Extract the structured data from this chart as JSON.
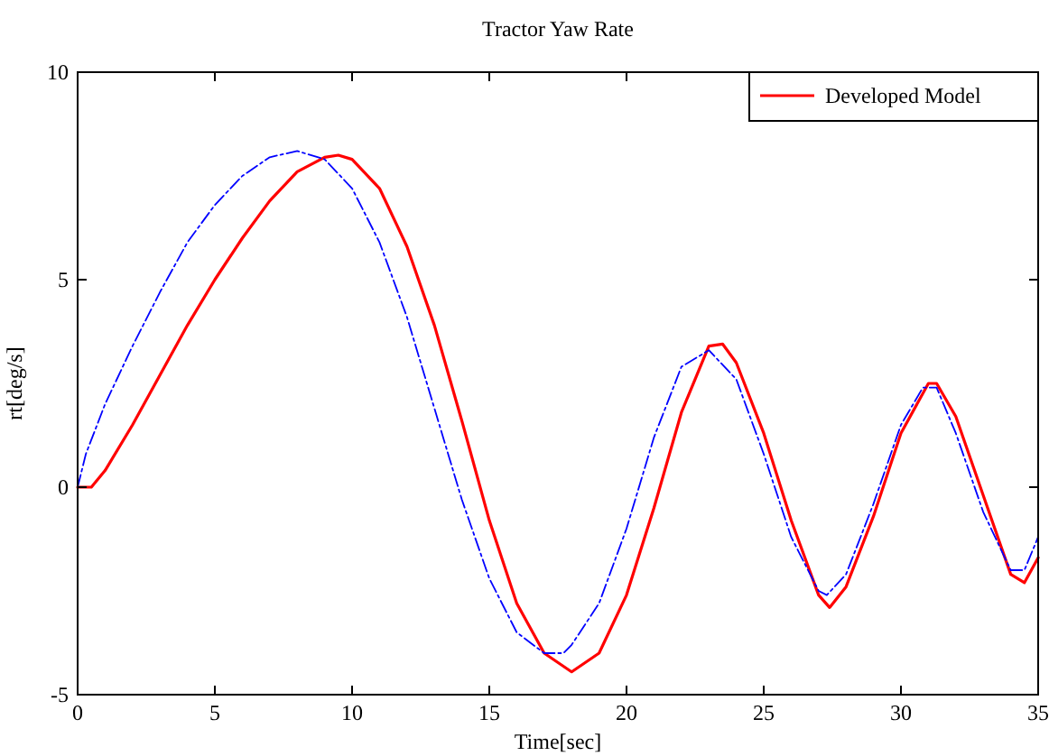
{
  "chart_data": {
    "type": "line",
    "title": "Tractor Yaw Rate",
    "xlabel": "Time[sec]",
    "ylabel": "rt[deg/s]",
    "xlim": [
      0,
      35
    ],
    "xticks": [
      0,
      5,
      10,
      15,
      20,
      25,
      30,
      35
    ],
    "ylim": [
      -5,
      10
    ],
    "yticks": [
      -5,
      0,
      5,
      10
    ],
    "grid": false,
    "legend": "top right",
    "series": [
      {
        "name": "Developed Model",
        "color": "#ff0000",
        "line_style": "solid",
        "x": [
          0,
          0.5,
          1,
          2,
          3,
          4,
          5,
          6,
          7,
          8,
          9,
          9.5,
          10,
          11,
          12,
          13,
          14,
          15,
          16,
          17,
          18,
          19,
          20,
          21,
          22,
          23,
          23.5,
          24,
          25,
          26,
          27,
          27.4,
          28,
          29,
          30,
          31,
          31.3,
          32,
          33,
          34,
          34.5,
          35
        ],
        "values": [
          0,
          0,
          0.4,
          1.5,
          2.7,
          3.9,
          5.0,
          6.0,
          6.9,
          7.6,
          7.95,
          8.0,
          7.9,
          7.2,
          5.8,
          3.9,
          1.6,
          -0.8,
          -2.8,
          -4.0,
          -4.45,
          -4.0,
          -2.6,
          -0.5,
          1.8,
          3.4,
          3.45,
          3.0,
          1.3,
          -0.8,
          -2.6,
          -2.9,
          -2.4,
          -0.7,
          1.3,
          2.5,
          2.5,
          1.7,
          -0.2,
          -2.1,
          -2.3,
          -1.7
        ]
      },
      {
        "color": "#0000ff",
        "line_style": "dashed",
        "x": [
          0,
          0.3,
          1,
          2,
          3,
          4,
          5,
          6,
          7,
          8,
          9,
          10,
          11,
          12,
          13,
          14,
          15,
          16,
          17,
          17.7,
          18,
          19,
          20,
          21,
          22,
          23,
          24,
          25,
          26,
          27,
          27.3,
          28,
          29,
          30,
          30.8,
          31.3,
          32,
          33,
          34,
          34.5,
          35
        ],
        "values": [
          0,
          0.8,
          2.0,
          3.4,
          4.7,
          5.9,
          6.8,
          7.5,
          7.95,
          8.1,
          7.9,
          7.2,
          5.9,
          4.1,
          1.9,
          -0.3,
          -2.2,
          -3.5,
          -4.0,
          -4.0,
          -3.8,
          -2.8,
          -1.0,
          1.2,
          2.9,
          3.3,
          2.6,
          0.8,
          -1.2,
          -2.5,
          -2.6,
          -2.1,
          -0.4,
          1.5,
          2.4,
          2.4,
          1.3,
          -0.6,
          -2.0,
          -2.0,
          -1.2
        ]
      }
    ]
  }
}
